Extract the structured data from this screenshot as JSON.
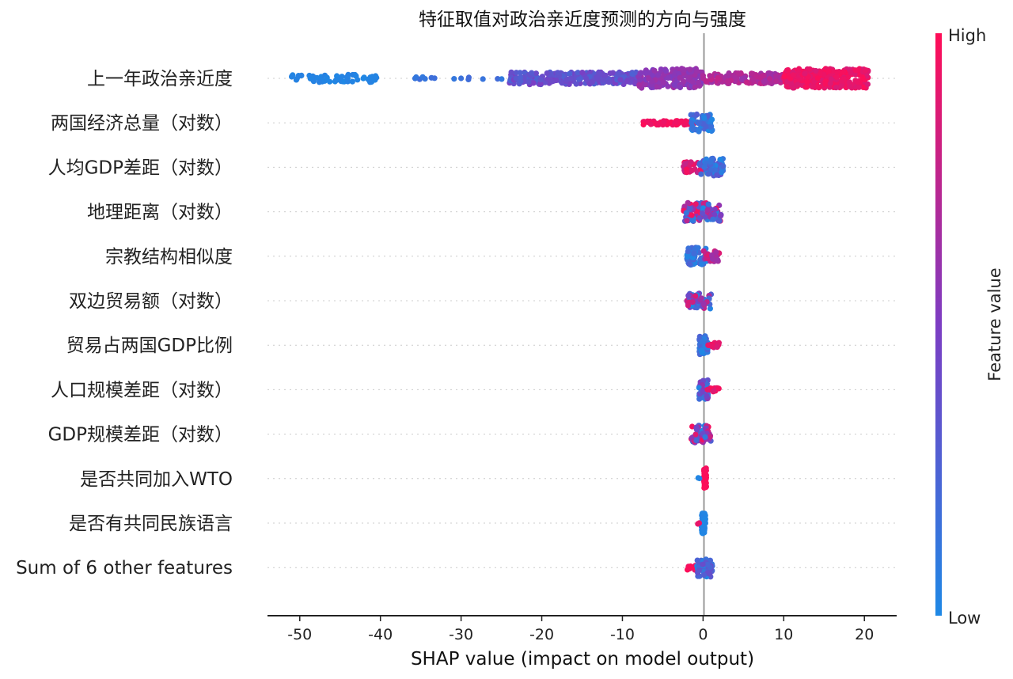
{
  "chart_data": {
    "type": "scatter",
    "subtype": "shap-beeswarm",
    "title": "特征取值对政治亲近度预测的方向与强度",
    "xlabel": "SHAP value (impact on model output)",
    "xlim": [
      -54,
      24
    ],
    "x_ticks": [
      -50,
      -40,
      -30,
      -20,
      -10,
      0,
      10,
      20
    ],
    "grid": false,
    "colorbar": {
      "label": "Feature value",
      "high": "High",
      "low": "Low",
      "low_color": "#1e88e5",
      "high_color": "#ff0d57"
    },
    "features": [
      {
        "name": "上一年政治亲近度",
        "clusters": [
          {
            "x": [
              -51,
              -40
            ],
            "fv": [
              0,
              0.05
            ],
            "n": 60,
            "spread": 0.22
          },
          {
            "x": [
              -36,
              -24.5
            ],
            "fv": [
              0.1,
              0.2
            ],
            "n": 14,
            "spread": 0.08
          },
          {
            "x": [
              -24,
              -8
            ],
            "fv": [
              0.25,
              0.5
            ],
            "n": 260,
            "spread": 0.35
          },
          {
            "x": [
              -8,
              0
            ],
            "fv": [
              0.5,
              0.65
            ],
            "n": 160,
            "spread": 0.55
          },
          {
            "x": [
              0,
              10
            ],
            "fv": [
              0.6,
              0.78
            ],
            "n": 130,
            "spread": 0.3
          },
          {
            "x": [
              10,
              20.5
            ],
            "fv": [
              0.85,
              1.0
            ],
            "n": 320,
            "spread": 0.55
          }
        ]
      },
      {
        "name": "两国经济总量（对数）",
        "clusters": [
          {
            "x": [
              -7.5,
              -1
            ],
            "fv": [
              0.92,
              1.0
            ],
            "n": 55,
            "spread": 0.12
          },
          {
            "x": [
              -1.5,
              1.2
            ],
            "fv": [
              0.0,
              0.3
            ],
            "n": 60,
            "spread": 0.5
          }
        ]
      },
      {
        "name": "人均GDP差距（对数）",
        "clusters": [
          {
            "x": [
              -2.5,
              0
            ],
            "fv": [
              0.75,
              1.0
            ],
            "n": 30,
            "spread": 0.3
          },
          {
            "x": [
              -0.5,
              2.5
            ],
            "fv": [
              0.0,
              0.35
            ],
            "n": 70,
            "spread": 0.5
          }
        ]
      },
      {
        "name": "地理距离（对数）",
        "clusters": [
          {
            "x": [
              -2.5,
              2.5
            ],
            "fv": [
              0.0,
              1.0
            ],
            "n": 90,
            "spread": 0.55
          }
        ]
      },
      {
        "name": "宗教结构相似度",
        "clusters": [
          {
            "x": [
              -2,
              0.5
            ],
            "fv": [
              0.0,
              0.25
            ],
            "n": 60,
            "spread": 0.5
          },
          {
            "x": [
              0,
              2
            ],
            "fv": [
              0.6,
              0.9
            ],
            "n": 30,
            "spread": 0.3
          }
        ]
      },
      {
        "name": "双边贸易额（对数）",
        "clusters": [
          {
            "x": [
              -2,
              1
            ],
            "fv": [
              0.0,
              0.9
            ],
            "n": 55,
            "spread": 0.45
          }
        ]
      },
      {
        "name": "贸易占两国GDP比例",
        "clusters": [
          {
            "x": [
              -0.5,
              0.6
            ],
            "fv": [
              0.0,
              0.25
            ],
            "n": 60,
            "spread": 0.55
          },
          {
            "x": [
              0.5,
              2
            ],
            "fv": [
              0.8,
              1.0
            ],
            "n": 12,
            "spread": 0.15
          }
        ]
      },
      {
        "name": "人口规模差距（对数）",
        "clusters": [
          {
            "x": [
              -0.5,
              0.6
            ],
            "fv": [
              0.0,
              0.6
            ],
            "n": 55,
            "spread": 0.55
          },
          {
            "x": [
              0.5,
              2
            ],
            "fv": [
              0.85,
              1.0
            ],
            "n": 15,
            "spread": 0.12
          }
        ]
      },
      {
        "name": "GDP规模差距（对数）",
        "clusters": [
          {
            "x": [
              -1.5,
              1
            ],
            "fv": [
              0.0,
              1.0
            ],
            "n": 55,
            "spread": 0.5
          }
        ]
      },
      {
        "name": "是否共同加入WTO",
        "clusters": [
          {
            "x": [
              0.1,
              0.4
            ],
            "fv": [
              0.95,
              1.0
            ],
            "n": 60,
            "spread": 0.6
          },
          {
            "x": [
              -0.6,
              -0.3
            ],
            "fv": [
              0.0,
              0.05
            ],
            "n": 2,
            "spread": 0.05
          }
        ]
      },
      {
        "name": "是否有共同民族语言",
        "clusters": [
          {
            "x": [
              -0.2,
              0.3
            ],
            "fv": [
              0.0,
              0.05
            ],
            "n": 60,
            "spread": 0.6
          },
          {
            "x": [
              -0.8,
              -0.4
            ],
            "fv": [
              0.9,
              1.0
            ],
            "n": 2,
            "spread": 0.05
          }
        ]
      },
      {
        "name": "Sum of 6 other features",
        "clusters": [
          {
            "x": [
              -2,
              0.2
            ],
            "fv": [
              0.85,
              1.0
            ],
            "n": 20,
            "spread": 0.15
          },
          {
            "x": [
              -0.8,
              1.2
            ],
            "fv": [
              0.0,
              0.4
            ],
            "n": 55,
            "spread": 0.55
          }
        ]
      }
    ]
  }
}
